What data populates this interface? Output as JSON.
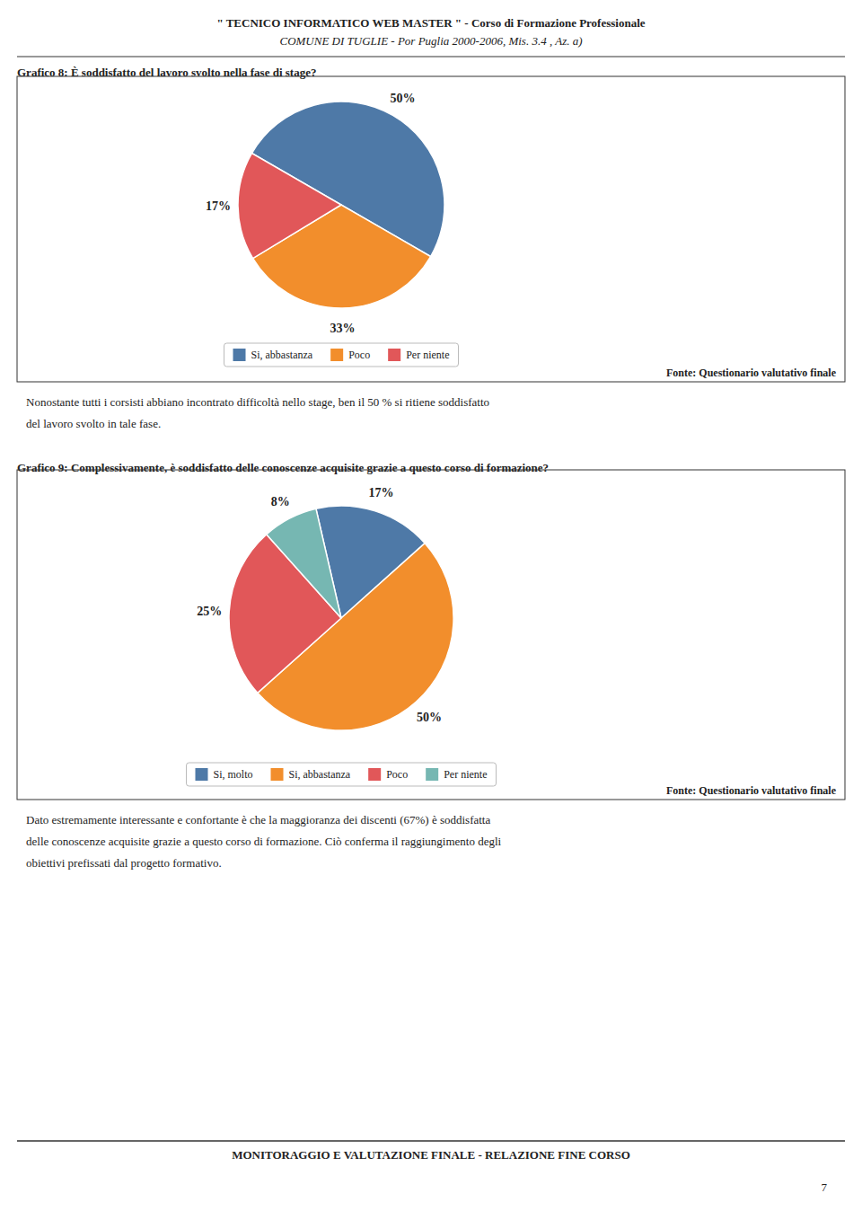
{
  "page": {
    "title": "\" TECNICO INFORMATICO WEB MASTER \" - Corso di Formazione Professionale",
    "subtitle": "COMUNE DI TUGLIE - Por Puglia 2000-2006, Mis. 3.4 , Az. a)",
    "footer": "MONITORAGGIO E VALUTAZIONE FINALE - RELAZIONE FINE CORSO",
    "page_number": "7",
    "background_color": "#FFFFFF"
  },
  "chart_data": [
    {
      "type": "pie",
      "title": "Grafico 8: È soddisfatto del lavoro svolto nella fase di stage?",
      "categories": [
        "Si, abbastanza",
        "Poco",
        "Per niente"
      ],
      "values": [
        50,
        33,
        17
      ],
      "value_labels": [
        "50%",
        "33%",
        "17%"
      ],
      "data_labels": true,
      "legend": "bottom",
      "source": "Fonte: Questionario valutativo finale",
      "caption": "Nonostante tutti i corsisti abbiano incontrato difficoltà nello stage, ben il 50 % si ritiene soddisfatto\ndel lavoro svolto in tale fase."
    },
    {
      "type": "pie",
      "title": "Grafico 9: Complessivamente, è soddisfatto delle conoscenze acquisite grazie a questo corso di formazione?",
      "categories": [
        "Si, molto",
        "Si, abbastanza",
        "Poco",
        "Per niente"
      ],
      "values": [
        17,
        50,
        25,
        8
      ],
      "value_labels": [
        "17%",
        "50%",
        "25%",
        "8%"
      ],
      "data_labels": true,
      "legend": "bottom",
      "source": "Fonte: Questionario valutativo finale",
      "caption": "Dato estremamente interessante e confortante è che la maggioranza dei discenti (67%) è soddisfatta\ndelle conoscenze acquisite grazie a questo corso di formazione. Ciò conferma il raggiungimento degli\nobiettivi prefissati dal progetto formativo."
    }
  ]
}
